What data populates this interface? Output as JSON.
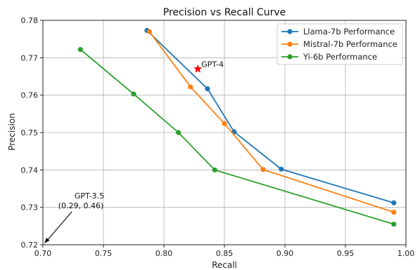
{
  "chart_data": {
    "type": "line",
    "title": "Precision vs Recall Curve",
    "xlabel": "Recall",
    "ylabel": "Precision",
    "xlim": [
      0.7,
      1.0
    ],
    "ylim": [
      0.72,
      0.78
    ],
    "xticks": [
      0.7,
      0.75,
      0.8,
      0.85,
      0.9,
      0.95,
      1.0
    ],
    "xtick_labels": [
      "0.70",
      "0.75",
      "0.80",
      "0.85",
      "0.90",
      "0.95",
      "1.00"
    ],
    "yticks": [
      0.72,
      0.73,
      0.74,
      0.75,
      0.76,
      0.77,
      0.78
    ],
    "ytick_labels": [
      "0.72",
      "0.73",
      "0.74",
      "0.75",
      "0.76",
      "0.77",
      "0.78"
    ],
    "grid": true,
    "legend_position": "top-right",
    "series": [
      {
        "name": "Llama-7b Performance",
        "color": "#1f77b4",
        "x": [
          0.786,
          0.836,
          0.858,
          0.897,
          0.99
        ],
        "y": [
          0.7773,
          0.7617,
          0.7502,
          0.7402,
          0.7312
        ]
      },
      {
        "name": "Mistral-7b Performance",
        "color": "#ff7f0e",
        "x": [
          0.788,
          0.822,
          0.85,
          0.882,
          0.99
        ],
        "y": [
          0.777,
          0.7622,
          0.7524,
          0.7401,
          0.7287
        ]
      },
      {
        "name": "Yi-6b Performance",
        "color": "#2ca02c",
        "x": [
          0.731,
          0.775,
          0.812,
          0.842,
          0.99
        ],
        "y": [
          0.7722,
          0.7603,
          0.75,
          0.74,
          0.7255
        ]
      }
    ],
    "annotations": [
      {
        "label": "GPT-4",
        "x": 0.828,
        "y": 0.767,
        "marker": "star",
        "color": "#ff0000"
      },
      {
        "label": "GPT-3.5",
        "sublabel": "(0.29, 0.46)",
        "x": 0.7,
        "y": 0.72,
        "marker": "arrow"
      }
    ]
  }
}
